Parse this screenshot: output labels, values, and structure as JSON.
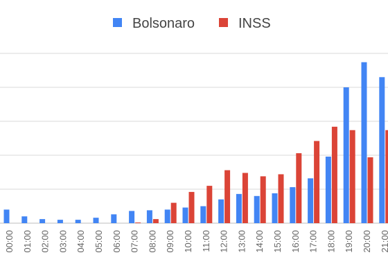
{
  "chart_data": {
    "type": "bar",
    "categories": [
      "00:00",
      "01:00",
      "02:00",
      "03:00",
      "04:00",
      "05:00",
      "06:00",
      "07:00",
      "08:00",
      "09:00",
      "10:00",
      "11:00",
      "12:00",
      "13:00",
      "14:00",
      "15:00",
      "16:00",
      "17:00",
      "18:00",
      "19:00",
      "20:00",
      "21:00"
    ],
    "series": [
      {
        "name": "Bolsonaro",
        "color": "#4285f4",
        "values": [
          20,
          10,
          6,
          5,
          5,
          8,
          13,
          18,
          19,
          20,
          23,
          25,
          35,
          43,
          40,
          44,
          53,
          66,
          98,
          200,
          237,
          215
        ]
      },
      {
        "name": "INSS",
        "color": "#db4437",
        "values": [
          0,
          0,
          0,
          0,
          0,
          0,
          0,
          1,
          6,
          30,
          46,
          55,
          78,
          74,
          69,
          72,
          103,
          121,
          142,
          137,
          97,
          137
        ]
      }
    ],
    "ylim": [
      0,
      250
    ],
    "yticks": [
      0,
      50,
      100,
      150,
      200,
      250
    ],
    "grid": true,
    "legend_position": "top-center"
  }
}
